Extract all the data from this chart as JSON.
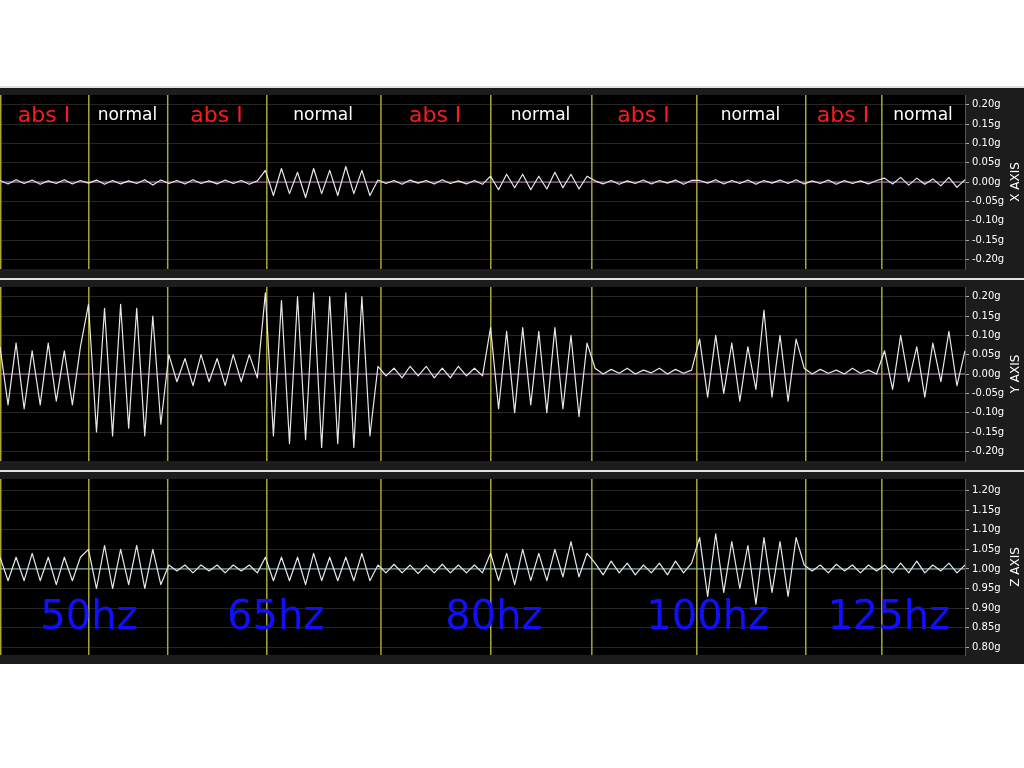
{
  "chart_data": [
    {
      "type": "line",
      "ylabel": "X AXIS",
      "tick_labels": "y",
      "grid": "y",
      "categories": [
        null,
        null,
        null,
        null,
        null,
        null,
        null,
        null,
        null,
        null,
        null,
        null,
        null,
        null,
        null,
        null,
        null,
        null,
        null,
        null,
        null,
        null,
        null,
        null,
        null,
        null,
        null,
        null,
        null,
        null,
        null,
        null,
        null,
        null,
        null,
        null,
        null,
        null,
        null,
        null,
        null,
        null,
        null,
        null,
        null,
        null,
        null,
        null,
        null,
        null,
        null,
        null,
        null,
        null,
        null,
        null,
        null,
        null,
        null,
        null,
        null,
        null,
        null,
        null,
        null,
        null,
        null,
        null,
        null,
        null,
        null,
        null,
        null,
        null,
        null,
        null,
        null,
        null,
        null,
        null,
        null,
        null,
        null,
        null,
        null,
        null,
        null,
        null,
        null,
        null,
        null,
        null,
        null,
        null,
        null,
        null,
        null,
        null,
        null,
        null,
        null,
        null,
        null,
        null,
        null,
        null,
        null,
        null,
        null,
        null,
        null,
        null,
        null,
        null,
        null,
        null,
        null,
        null,
        null,
        null,
        null
      ],
      "series": [
        {
          "color": "#e8e8e8",
          "values": [
            0.004,
            -0.005,
            0.006,
            -0.004,
            0.005,
            -0.006,
            0.003,
            -0.004,
            0.006,
            -0.005,
            0.004,
            -0.003,
            0.005,
            -0.006,
            0.004,
            -0.005,
            0.003,
            -0.004,
            0.006,
            -0.008,
            0.005,
            -0.004,
            0.004,
            -0.005,
            0.006,
            -0.004,
            0.003,
            -0.005,
            0.005,
            -0.004,
            0.004,
            -0.006,
            0.003,
            0.03,
            -0.035,
            0.035,
            -0.03,
            0.025,
            -0.04,
            0.035,
            -0.03,
            0.03,
            -0.035,
            0.04,
            -0.03,
            0.03,
            -0.035,
            0.005,
            -0.004,
            0.004,
            -0.006,
            0.005,
            -0.003,
            0.004,
            -0.005,
            0.006,
            -0.004,
            0.003,
            -0.005,
            0.004,
            -0.006,
            0.015,
            -0.02,
            0.02,
            -0.015,
            0.02,
            -0.02,
            0.015,
            -0.018,
            0.025,
            -0.015,
            0.02,
            -0.018,
            0.015,
            0.003,
            -0.005,
            0.004,
            -0.006,
            0.003,
            -0.004,
            0.005,
            -0.005,
            0.004,
            -0.003,
            0.005,
            -0.006,
            0.004,
            0.004,
            -0.003,
            0.006,
            -0.005,
            0.004,
            -0.004,
            0.005,
            -0.006,
            0.004,
            -0.003,
            0.005,
            -0.004,
            0.006,
            -0.005,
            0.003,
            -0.004,
            0.005,
            -0.006,
            0.004,
            -0.004,
            0.003,
            -0.005,
            0.004,
            0.01,
            -0.005,
            0.012,
            -0.008,
            0.01,
            -0.006,
            0.008,
            -0.01,
            0.012,
            -0.014,
            0.006
          ]
        }
      ],
      "ylim": [
        -0.225,
        0.225
      ],
      "yticks": [
        {
          "value": -0.2,
          "label": "-0.20g"
        },
        {
          "value": -0.15,
          "label": "-0.15g"
        },
        {
          "value": -0.1,
          "label": "-0.10g"
        },
        {
          "value": -0.05,
          "label": "-0.05g"
        },
        {
          "value": 0,
          "label": "0.00g"
        },
        {
          "value": 0.05,
          "label": "0.05g"
        },
        {
          "value": 0.1,
          "label": "0.10g"
        },
        {
          "value": 0.15,
          "label": "0.15g"
        },
        {
          "value": 0.2,
          "label": "0.20g"
        }
      ],
      "ref_lines": [
        {
          "axis": "y",
          "value": 0,
          "color": "#c080c0"
        }
      ],
      "annotations": [
        "abs I",
        "normal",
        "abs I",
        "normal",
        "abs I",
        "normal",
        "abs I",
        "normal",
        "abs I",
        "normal"
      ]
    },
    {
      "type": "line",
      "ylabel": "Y AXIS",
      "tick_labels": "y",
      "grid": "y",
      "categories": [
        null,
        null,
        null,
        null,
        null,
        null,
        null,
        null,
        null,
        null,
        null,
        null,
        null,
        null,
        null,
        null,
        null,
        null,
        null,
        null,
        null,
        null,
        null,
        null,
        null,
        null,
        null,
        null,
        null,
        null,
        null,
        null,
        null,
        null,
        null,
        null,
        null,
        null,
        null,
        null,
        null,
        null,
        null,
        null,
        null,
        null,
        null,
        null,
        null,
        null,
        null,
        null,
        null,
        null,
        null,
        null,
        null,
        null,
        null,
        null,
        null,
        null,
        null,
        null,
        null,
        null,
        null,
        null,
        null,
        null,
        null,
        null,
        null,
        null,
        null,
        null,
        null,
        null,
        null,
        null,
        null,
        null,
        null,
        null,
        null,
        null,
        null,
        null,
        null,
        null,
        null,
        null,
        null,
        null,
        null,
        null,
        null,
        null,
        null,
        null,
        null,
        null,
        null,
        null,
        null,
        null,
        null,
        null,
        null,
        null,
        null,
        null,
        null,
        null,
        null,
        null,
        null,
        null,
        null,
        null,
        null
      ],
      "series": [
        {
          "color": "#e8e8e8",
          "values": [
            0.07,
            -0.08,
            0.08,
            -0.09,
            0.06,
            -0.08,
            0.08,
            -0.07,
            0.06,
            -0.08,
            0.07,
            0.18,
            -0.15,
            0.17,
            -0.16,
            0.18,
            -0.14,
            0.17,
            -0.16,
            0.15,
            -0.13,
            0.05,
            -0.02,
            0.04,
            -0.03,
            0.05,
            -0.02,
            0.04,
            -0.03,
            0.05,
            -0.02,
            0.05,
            -0.01,
            0.21,
            -0.16,
            0.19,
            -0.18,
            0.2,
            -0.17,
            0.21,
            -0.19,
            0.2,
            -0.18,
            0.21,
            -0.19,
            0.2,
            -0.16,
            0.02,
            -0.005,
            0.015,
            -0.01,
            0.02,
            -0.005,
            0.02,
            -0.01,
            0.015,
            -0.01,
            0.02,
            -0.005,
            0.015,
            -0.005,
            0.12,
            -0.09,
            0.11,
            -0.1,
            0.12,
            -0.08,
            0.11,
            -0.1,
            0.12,
            -0.09,
            0.1,
            -0.11,
            0.08,
            0.015,
            0,
            0.012,
            0.002,
            0.015,
            0,
            0.01,
            0.003,
            0.015,
            0,
            0.012,
            0.002,
            0.01,
            0.09,
            -0.06,
            0.1,
            -0.05,
            0.08,
            -0.07,
            0.07,
            -0.04,
            0.165,
            -0.06,
            0.1,
            -0.07,
            0.09,
            0.015,
            0,
            0.012,
            0.002,
            0.01,
            0,
            0.015,
            0.002,
            0.01,
            0,
            0.06,
            -0.04,
            0.1,
            -0.02,
            0.07,
            -0.06,
            0.08,
            -0.02,
            0.11,
            -0.03,
            0.06
          ]
        }
      ],
      "ylim": [
        -0.225,
        0.225
      ],
      "yticks": [
        {
          "value": -0.2,
          "label": "-0.20g"
        },
        {
          "value": -0.15,
          "label": "-0.15g"
        },
        {
          "value": -0.1,
          "label": "-0.10g"
        },
        {
          "value": -0.05,
          "label": "-0.05g"
        },
        {
          "value": 0,
          "label": "0.00g"
        },
        {
          "value": 0.05,
          "label": "0.05g"
        },
        {
          "value": 0.1,
          "label": "0.10g"
        },
        {
          "value": 0.15,
          "label": "0.15g"
        },
        {
          "value": 0.2,
          "label": "0.20g"
        }
      ],
      "ref_lines": [
        {
          "axis": "y",
          "value": 0,
          "color": "#c080c0"
        }
      ]
    },
    {
      "type": "line",
      "ylabel": "Z AXIS",
      "tick_labels": "y",
      "grid": "y",
      "categories": [
        null,
        null,
        null,
        null,
        null,
        null,
        null,
        null,
        null,
        null,
        null,
        null,
        null,
        null,
        null,
        null,
        null,
        null,
        null,
        null,
        null,
        null,
        null,
        null,
        null,
        null,
        null,
        null,
        null,
        null,
        null,
        null,
        null,
        null,
        null,
        null,
        null,
        null,
        null,
        null,
        null,
        null,
        null,
        null,
        null,
        null,
        null,
        null,
        null,
        null,
        null,
        null,
        null,
        null,
        null,
        null,
        null,
        null,
        null,
        null,
        null,
        null,
        null,
        null,
        null,
        null,
        null,
        null,
        null,
        null,
        null,
        null,
        null,
        null,
        null,
        null,
        null,
        null,
        null,
        null,
        null,
        null,
        null,
        null,
        null,
        null,
        null,
        null,
        null,
        null,
        null,
        null,
        null,
        null,
        null,
        null,
        null,
        null,
        null,
        null,
        null,
        null,
        null,
        null,
        null,
        null,
        null,
        null,
        null,
        null,
        null,
        null,
        null,
        null,
        null,
        null,
        null,
        null,
        null,
        null,
        null
      ],
      "series": [
        {
          "color": "#e8e8e8",
          "values": [
            1.03,
            0.97,
            1.03,
            0.97,
            1.04,
            0.97,
            1.03,
            0.96,
            1.03,
            0.97,
            1.03,
            1.05,
            0.95,
            1.06,
            0.95,
            1.05,
            0.96,
            1.06,
            0.95,
            1.05,
            0.96,
            1.01,
            0.995,
            1.01,
            0.99,
            1.01,
            0.995,
            1.01,
            0.99,
            1.01,
            0.995,
            1.01,
            0.99,
            1.03,
            0.97,
            1.03,
            0.97,
            1.03,
            0.96,
            1.04,
            0.97,
            1.03,
            0.97,
            1.03,
            0.97,
            1.04,
            0.97,
            1.01,
            0.99,
            1.012,
            0.99,
            1.01,
            0.988,
            1.01,
            0.99,
            1.012,
            0.99,
            1.01,
            0.99,
            1.01,
            0.99,
            1.04,
            0.97,
            1.04,
            0.96,
            1.05,
            0.97,
            1.04,
            0.97,
            1.05,
            0.98,
            1.07,
            0.98,
            1.04,
            1.015,
            0.985,
            1.02,
            0.99,
            1.015,
            0.985,
            1.01,
            0.99,
            1.015,
            0.985,
            1.02,
            0.99,
            1.015,
            1.08,
            0.93,
            1.09,
            0.94,
            1.07,
            0.95,
            1.06,
            0.91,
            1.08,
            0.94,
            1.07,
            0.93,
            1.08,
            1.01,
            0.995,
            1.01,
            0.99,
            1.012,
            0.995,
            1.01,
            0.99,
            1.01,
            0.995,
            1.01,
            0.99,
            1.015,
            0.99,
            1.02,
            0.99,
            1.01,
            0.995,
            1.015,
            0.99,
            1.01
          ]
        }
      ],
      "ylim": [
        0.78,
        1.23
      ],
      "yticks": [
        {
          "value": 0.8,
          "label": "0.80g"
        },
        {
          "value": 0.85,
          "label": "0.85g"
        },
        {
          "value": 0.9,
          "label": "0.90g"
        },
        {
          "value": 0.95,
          "label": "0.95g"
        },
        {
          "value": 1,
          "label": "1.00g"
        },
        {
          "value": 1.05,
          "label": "1.05g"
        },
        {
          "value": 1.1,
          "label": "1.10g"
        },
        {
          "value": 1.15,
          "label": "1.15g"
        },
        {
          "value": 1.2,
          "label": "1.20g"
        }
      ],
      "ref_lines": [
        {
          "axis": "y",
          "value": 1,
          "color": "#80c8c8"
        }
      ],
      "annotations": [
        "50hz",
        "65hz",
        "80hz",
        "100hz",
        "125hz"
      ]
    }
  ]
}
